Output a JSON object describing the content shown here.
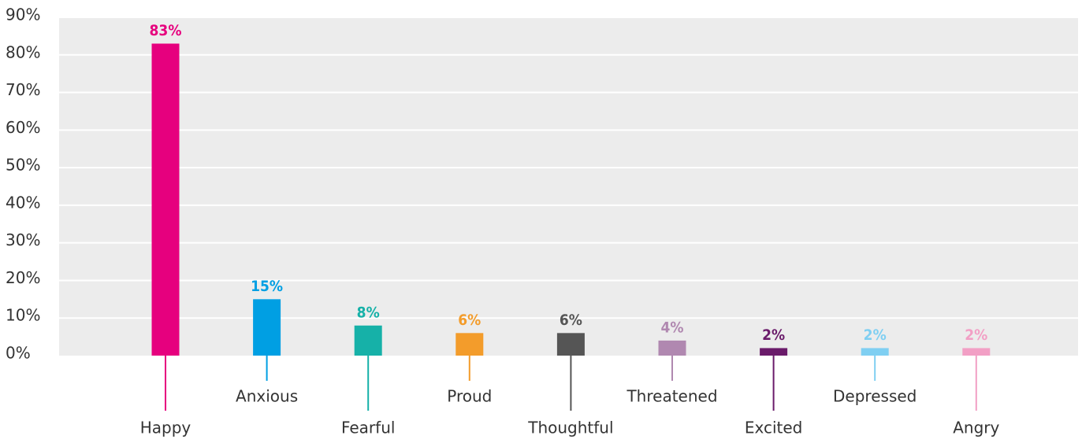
{
  "chart_data": {
    "type": "bar",
    "categories": [
      "Happy",
      "Anxious",
      "Fearful",
      "Proud",
      "Thoughtful",
      "Threatened",
      "Excited",
      "Depressed",
      "Angry"
    ],
    "values": [
      83,
      15,
      8,
      6,
      6,
      4,
      2,
      2,
      2
    ],
    "value_labels": [
      "83%",
      "15%",
      "8%",
      "6%",
      "6%",
      "4%",
      "2%",
      "2%",
      "2%"
    ],
    "colors": [
      "#e6007e",
      "#009fe3",
      "#16b1a8",
      "#f39c2b",
      "#555555",
      "#b088b0",
      "#6a1b6a",
      "#7fcff2",
      "#f29fc5"
    ],
    "ylim": [
      0,
      90
    ],
    "yticks": [
      {
        "value": 0,
        "label": "0%"
      },
      {
        "value": 10,
        "label": "10%"
      },
      {
        "value": 20,
        "label": "20%"
      },
      {
        "value": 30,
        "label": "30%"
      },
      {
        "value": 40,
        "label": "40%"
      },
      {
        "value": 50,
        "label": "50%"
      },
      {
        "value": 60,
        "label": "60%"
      },
      {
        "value": 70,
        "label": "70%"
      },
      {
        "value": 80,
        "label": "80%"
      },
      {
        "value": 90,
        "label": "90%"
      }
    ],
    "grid": true
  }
}
